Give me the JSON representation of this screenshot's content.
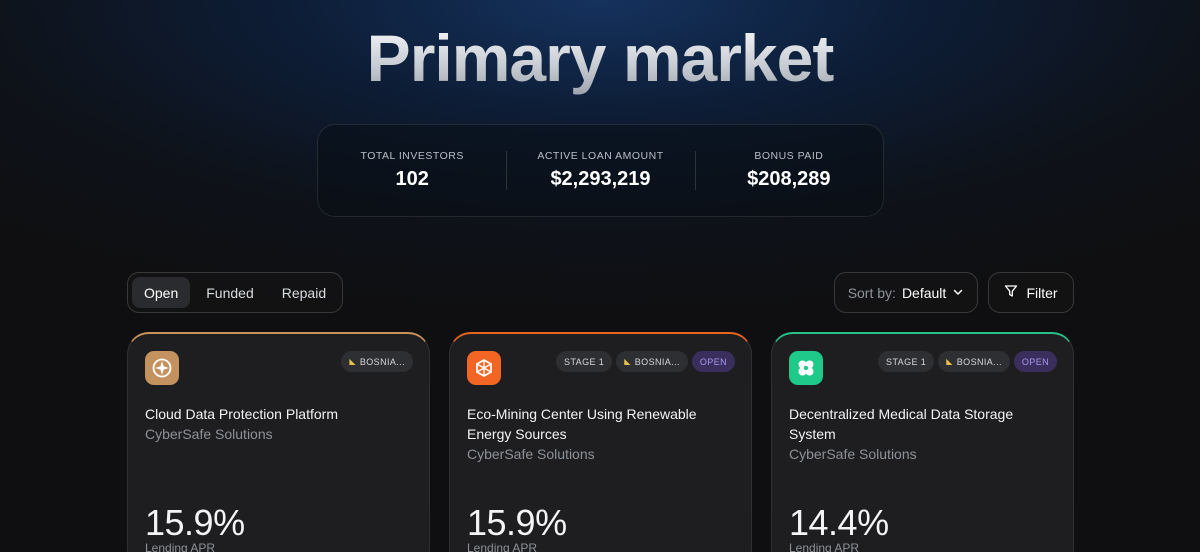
{
  "page": {
    "title": "Primary market"
  },
  "stats": [
    {
      "label": "TOTAL INVESTORS",
      "value": "102"
    },
    {
      "label": "ACTIVE LOAN AMOUNT",
      "value": "$2,293,219"
    },
    {
      "label": "BONUS PAID",
      "value": "$208,289"
    }
  ],
  "tabs": [
    {
      "label": "Open",
      "active": true
    },
    {
      "label": "Funded",
      "active": false
    },
    {
      "label": "Repaid",
      "active": false
    }
  ],
  "sort": {
    "prefix": "Sort by:",
    "value": "Default",
    "icon": "chevron-down-icon"
  },
  "filter": {
    "label": "Filter",
    "icon": "filter-icon"
  },
  "cards": [
    {
      "accent": "#c9925a",
      "logo_color": "#c4925e",
      "logo_icon": "compass-icon",
      "badges": [
        {
          "text": "BOSNIA...",
          "flag": true
        }
      ],
      "title": "Cloud Data Protection Platform",
      "company": "CyberSafe Solutions",
      "apr": "15.9%",
      "apr_label": "Lending APR"
    },
    {
      "accent": "#e8651f",
      "logo_color": "#f26522",
      "logo_icon": "network-icon",
      "badges": [
        {
          "text": "STAGE 1",
          "flag": false
        },
        {
          "text": "BOSNIA...",
          "flag": true
        },
        {
          "text": "OPEN",
          "flag": false,
          "open": true
        }
      ],
      "title": "Eco-Mining Center Using Renewable Energy Sources",
      "company": "CyberSafe Solutions",
      "apr": "15.9%",
      "apr_label": "Lending APR"
    },
    {
      "accent": "#27c28a",
      "logo_color": "#1fc98a",
      "logo_icon": "clover-icon",
      "badges": [
        {
          "text": "STAGE 1",
          "flag": false
        },
        {
          "text": "BOSNIA...",
          "flag": true
        },
        {
          "text": "OPEN",
          "flag": false,
          "open": true
        }
      ],
      "title": "Decentralized Medical Data Storage System",
      "company": "CyberSafe Solutions",
      "apr": "14.4%",
      "apr_label": "Lending APR"
    }
  ]
}
